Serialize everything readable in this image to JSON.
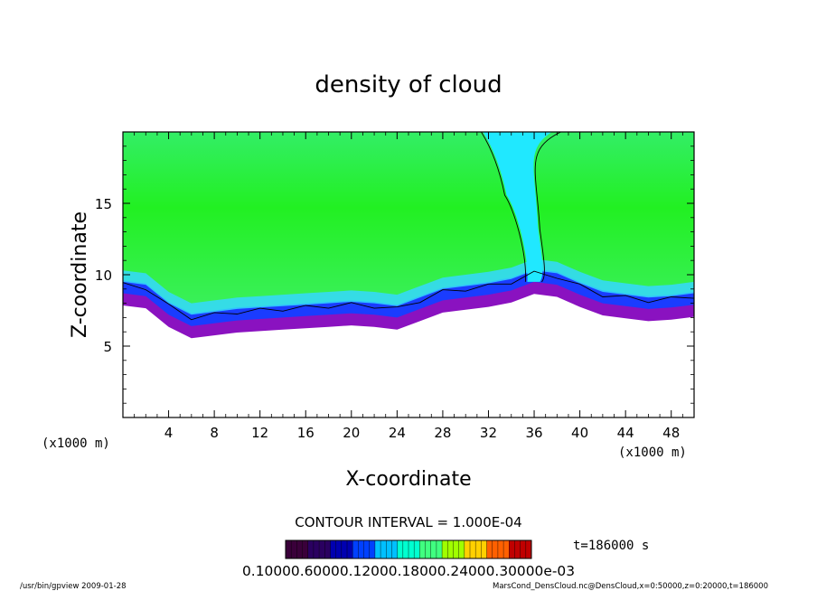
{
  "chart_data": {
    "type": "heatmap",
    "title": "density of cloud",
    "xlabel": "X-coordinate",
    "ylabel": "Z-coordinate",
    "x_unit_left": "(x1000 m)",
    "x_unit_right": "(x1000 m)",
    "xlim": [
      0,
      50
    ],
    "ylim": [
      0,
      20
    ],
    "x_ticks": [
      4,
      8,
      12,
      16,
      20,
      24,
      28,
      32,
      36,
      40,
      44,
      48
    ],
    "y_ticks": [
      5,
      10,
      15
    ],
    "contour_label": "CONTOUR INTERVAL = 1.000E-04",
    "time_label": "t=186000 s",
    "colorbar_labels_text": "0.10000.60000.12000.18000.24000.30000e-03",
    "colorbar_colors": [
      "#3a003a",
      "#2a0060",
      "#0000b0",
      "#0040ff",
      "#00c0ff",
      "#00ffd0",
      "#40ff80",
      "#a0ff00",
      "#ffd000",
      "#ff6000",
      "#c00000"
    ],
    "footer_left": "/usr/bin/gpview   2009-01-28",
    "footer_right": "MarsCond_DensCloud.nc@DensCloud,x=0:50000,z=0:20000,t=186000",
    "cloud_base_profile": {
      "x": [
        0,
        2,
        4,
        6,
        8,
        10,
        12,
        14,
        16,
        18,
        20,
        22,
        24,
        26,
        28,
        30,
        32,
        34,
        36,
        38,
        40,
        42,
        44,
        46,
        48,
        50
      ],
      "z": [
        8.7,
        8.5,
        7.2,
        6.4,
        6.6,
        6.8,
        6.9,
        7.0,
        7.1,
        7.2,
        7.3,
        7.2,
        7.0,
        7.6,
        8.2,
        8.4,
        8.6,
        8.9,
        9.5,
        9.3,
        8.6,
        8.0,
        7.8,
        7.6,
        7.7,
        7.9
      ]
    },
    "dry_plume": {
      "x_bottom": 36.5,
      "z_bottom": 9.5,
      "x_top": 32,
      "z_top": 20
    }
  }
}
